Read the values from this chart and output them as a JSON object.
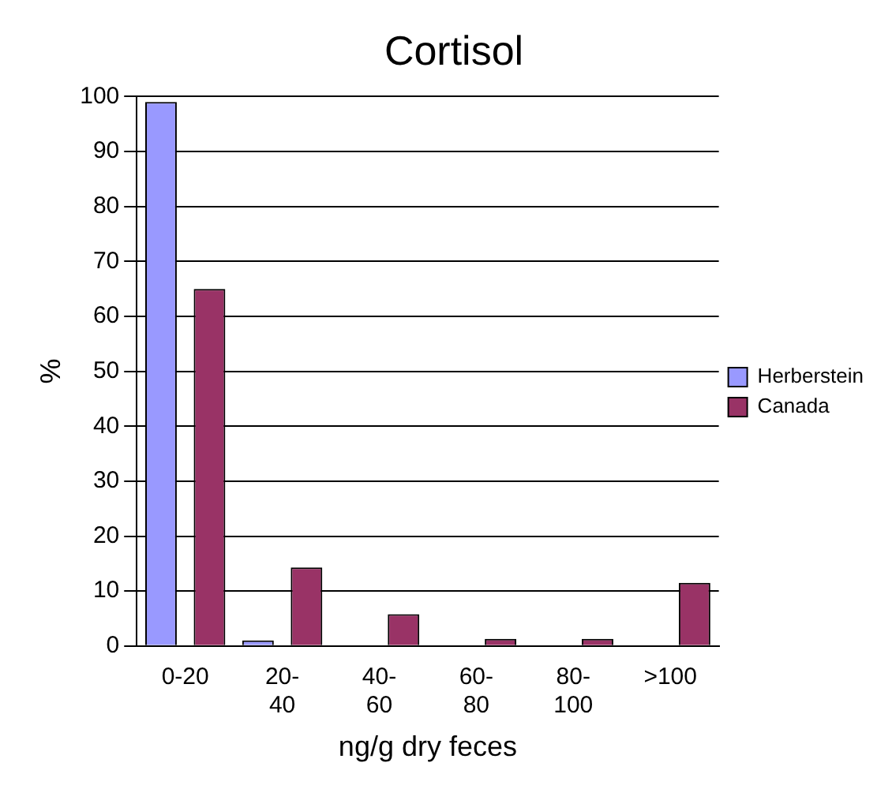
{
  "chart_data": {
    "type": "bar",
    "title": "Cortisol",
    "xlabel": "ng/g dry feces",
    "ylabel": "%",
    "categories": [
      "0-20",
      "20-\n40",
      "40-\n60",
      "60-\n80",
      "80-\n100",
      ">100"
    ],
    "series": [
      {
        "name": "Herberstein",
        "color": "#9999ff",
        "values": [
          99,
          1,
          0,
          0,
          0,
          0
        ]
      },
      {
        "name": "Canada",
        "color": "#993366",
        "values": [
          65,
          14.3,
          5.8,
          1.3,
          1.3,
          11.5
        ]
      }
    ],
    "ylim": [
      0,
      100
    ],
    "yticks": [
      0,
      10,
      20,
      30,
      40,
      50,
      60,
      70,
      80,
      90,
      100
    ],
    "grid": "y",
    "legend": "right"
  }
}
